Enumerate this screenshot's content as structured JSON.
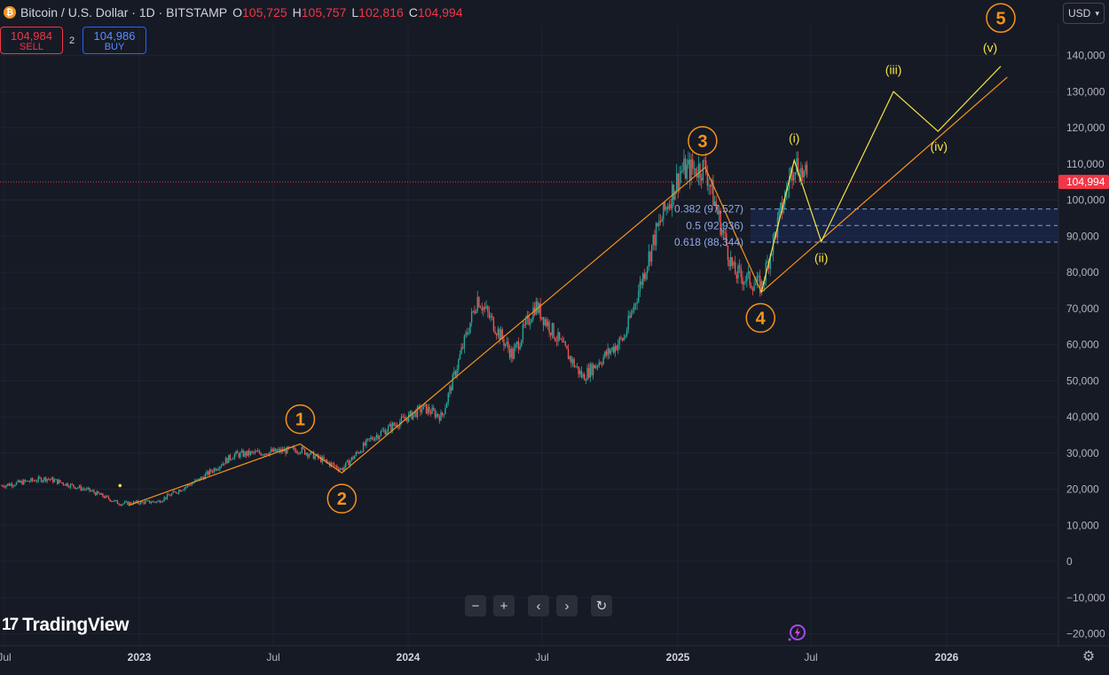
{
  "header": {
    "symbol_title": "Bitcoin / U.S. Dollar · 1D · BITSTAMP",
    "coin_glyph": "₿",
    "open_label": "O",
    "open": "105,725",
    "high_label": "H",
    "high": "105,757",
    "low_label": "L",
    "low": "102,816",
    "close_label": "C",
    "close": "104,994"
  },
  "trade": {
    "sell_price": "104,984",
    "sell_label": "SELL",
    "spread": "2",
    "buy_price": "104,986",
    "buy_label": "BUY"
  },
  "currency": "USD",
  "branding": "TradingView",
  "controls": [
    "zoom-out",
    "zoom-in",
    "scroll-left",
    "scroll-right",
    "reset"
  ],
  "colors": {
    "background": "#161a25",
    "up_candle": "#26a69a",
    "down_candle": "#ef5350",
    "wave_line": "#f7931a",
    "subwave_line": "#f5e342",
    "fib_text": "#8fa9e8",
    "price_marker": "#f23645"
  },
  "chart_data": {
    "type": "candlestick",
    "x_ticks": [
      "Jul",
      "2023",
      "Jul",
      "2024",
      "Jul",
      "2025",
      "Jul",
      "2026"
    ],
    "y_ticks": [
      "140,000",
      "130,000",
      "120,000",
      "110,000",
      "100,000",
      "90,000",
      "80,000",
      "70,000",
      "60,000",
      "50,000",
      "40,000",
      "30,000",
      "20,000",
      "10,000",
      "0",
      "−10,000",
      "−20,000"
    ],
    "last_price": "104,994",
    "approx_price_path": [
      {
        "date": "2022-06-01",
        "price": 21000
      },
      {
        "date": "2022-08-01",
        "price": 23000
      },
      {
        "date": "2022-10-01",
        "price": 19500
      },
      {
        "date": "2022-11-10",
        "price": 16000
      },
      {
        "date": "2023-01-01",
        "price": 16600
      },
      {
        "date": "2023-03-01",
        "price": 23000
      },
      {
        "date": "2023-04-15",
        "price": 29500
      },
      {
        "date": "2023-07-15",
        "price": 31000
      },
      {
        "date": "2023-09-10",
        "price": 25500
      },
      {
        "date": "2023-10-20",
        "price": 34000
      },
      {
        "date": "2023-12-31",
        "price": 42500
      },
      {
        "date": "2024-01-25",
        "price": 40000
      },
      {
        "date": "2024-03-14",
        "price": 73000
      },
      {
        "date": "2024-05-01",
        "price": 57000
      },
      {
        "date": "2024-06-01",
        "price": 71000
      },
      {
        "date": "2024-08-05",
        "price": 51000
      },
      {
        "date": "2024-10-01",
        "price": 62000
      },
      {
        "date": "2024-11-12",
        "price": 90000
      },
      {
        "date": "2024-12-17",
        "price": 108000
      },
      {
        "date": "2025-01-20",
        "price": 109000
      },
      {
        "date": "2025-02-28",
        "price": 80000
      },
      {
        "date": "2025-04-07",
        "price": 76000
      },
      {
        "date": "2025-05-22",
        "price": 111000
      },
      {
        "date": "2025-06-10",
        "price": 105000
      }
    ],
    "waves": [
      {
        "label": "1",
        "date": "2023-07-15",
        "price": 32500
      },
      {
        "label": "2",
        "date": "2023-09-10",
        "price": 24500
      },
      {
        "label": "3",
        "date": "2025-01-20",
        "price": 109000
      },
      {
        "label": "4",
        "date": "2025-04-07",
        "price": 74500
      },
      {
        "label": "5",
        "date": "2026-03-01",
        "price": 143000
      }
    ],
    "wave_trendline": {
      "from": {
        "date": "2025-04-07",
        "price": 74500
      },
      "to": {
        "date": "2026-03-10",
        "price": 134000
      }
    },
    "subwaves": [
      {
        "label": "(i)",
        "date": "2025-05-22",
        "price": 111000
      },
      {
        "label": "(ii)",
        "date": "2025-06-28",
        "price": 88500
      },
      {
        "label": "(iii)",
        "date": "2025-10-05",
        "price": 130000
      },
      {
        "label": "(iv)",
        "date": "2025-12-05",
        "price": 119000
      },
      {
        "label": "(v)",
        "date": "2026-03-01",
        "price": 137000
      }
    ],
    "fib_levels": [
      {
        "label": "0.382 (97,527)",
        "value": 97527
      },
      {
        "label": "0.5 (92,936)",
        "value": 92936
      },
      {
        "label": "0.618 (88,344)",
        "value": 88344
      }
    ]
  }
}
